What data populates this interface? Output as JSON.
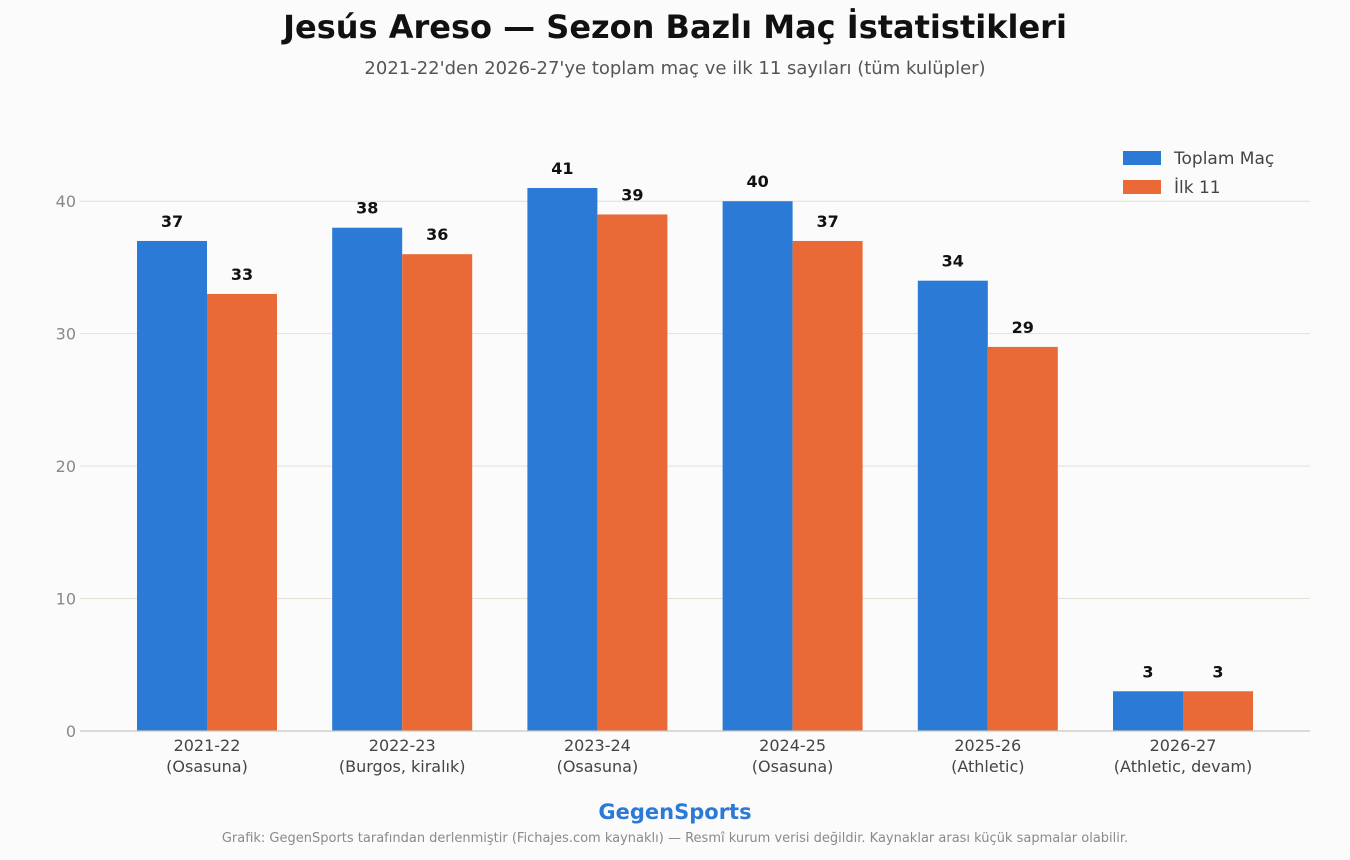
{
  "header": {
    "title": "Jesús Areso — Sezon Bazlı Maç İstatistikleri",
    "subtitle": "2021-22'den 2026-27'ye toplam maç ve ilk 11 sayıları (tüm kulüpler)"
  },
  "footer": {
    "brand": "GegenSports",
    "note": "Grafik: GegenSports tarafından derlenmiştir (Fichajes.com kaynaklı) — Resmî kurum verisi değildir. Kaynaklar arası küçük sapmalar olabilir."
  },
  "chart_data": {
    "type": "bar",
    "categories": [
      [
        "2021-22",
        "(Osasuna)"
      ],
      [
        "2022-23",
        "(Burgos, kiralık)"
      ],
      [
        "2023-24",
        "(Osasuna)"
      ],
      [
        "2024-25",
        "(Osasuna)"
      ],
      [
        "2025-26",
        "(Athletic)"
      ],
      [
        "2026-27",
        "(Athletic, devam)"
      ]
    ],
    "series": [
      {
        "name": "Toplam Maç",
        "color": "#2b7ad6",
        "values": [
          37,
          38,
          41,
          40,
          34,
          3
        ]
      },
      {
        "name": "İlk 11",
        "color": "#e96a36",
        "values": [
          33,
          36,
          39,
          37,
          29,
          3
        ]
      }
    ],
    "ylim": [
      0,
      45
    ],
    "yticks": [
      0,
      10,
      20,
      30,
      40
    ],
    "grid": true,
    "legend": "top-right",
    "data_labels": true
  }
}
